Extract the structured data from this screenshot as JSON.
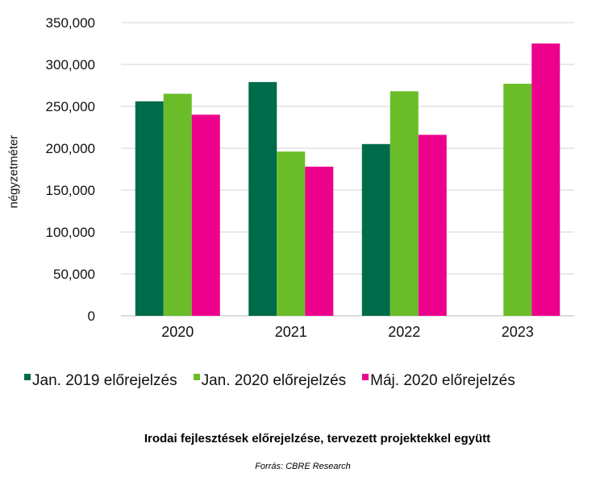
{
  "chart_data": {
    "type": "bar",
    "title": "Irodai fejlesztések előrejelzése, tervezett projektekkel együtt",
    "source": "Forrás: CBRE Research",
    "ylabel": "négyzetméter",
    "xlabel": "",
    "ylim": [
      0,
      350000
    ],
    "yticks": [
      "0",
      "50,000",
      "100,000",
      "150,000",
      "200,000",
      "250,000",
      "300,000",
      "350,000"
    ],
    "ytick_values": [
      0,
      50000,
      100000,
      150000,
      200000,
      250000,
      300000,
      350000
    ],
    "categories": [
      "2020",
      "2021",
      "2022",
      "2023"
    ],
    "grid": true,
    "legend_placement": "bottom",
    "series": [
      {
        "name": "Jan. 2019 előrejelzés",
        "color": "#006b4a",
        "values": [
          256000,
          279000,
          205000,
          null
        ]
      },
      {
        "name": "Jan. 2020 előrejelzés",
        "color": "#6abd28",
        "values": [
          265000,
          196000,
          268000,
          277000
        ]
      },
      {
        "name": "Máj. 2020 előrejelzés",
        "color": "#ec008c",
        "values": [
          240000,
          178000,
          216000,
          325000
        ]
      }
    ]
  }
}
